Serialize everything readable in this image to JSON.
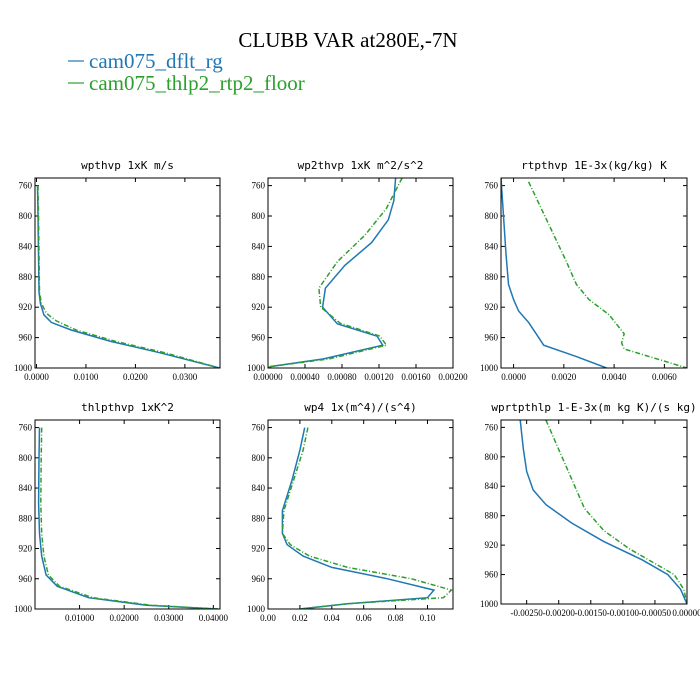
{
  "figure": {
    "title": "CLUBB VAR at280E,-7N",
    "legend": [
      {
        "label": "cam075_dflt_rg",
        "color": "#1f77b4"
      },
      {
        "label": "cam075_thlp2_rtp2_floor",
        "color": "#2ca02c"
      }
    ]
  },
  "chart_data": [
    {
      "type": "line",
      "title": "wpthvp  1xK m/s",
      "xlim": [
        -0.0003,
        0.0371
      ],
      "ylim": [
        1000,
        750
      ],
      "yticks": [
        760,
        800,
        840,
        880,
        920,
        960,
        1000
      ],
      "xticks": [
        0,
        0.01,
        0.02,
        0.03
      ],
      "xtick_labels": [
        "0.0000",
        "0.0100",
        "0.0200",
        "0.0300"
      ],
      "series": [
        {
          "name": "cam075_dflt_rg",
          "color": "#1f77b4",
          "x": [
            0.0002,
            0.0003,
            0.0004,
            0.0005,
            0.0008,
            0.0015,
            0.003,
            0.007,
            0.015,
            0.025,
            0.037
          ],
          "y": [
            760,
            800,
            850,
            900,
            915,
            930,
            940,
            950,
            965,
            980,
            1000
          ]
        },
        {
          "name": "cam075_thlp2_rtp2_floor",
          "color": "#2ca02c",
          "x": [
            0.0003,
            0.0004,
            0.0005,
            0.0006,
            0.001,
            0.002,
            0.004,
            0.008,
            0.016,
            0.026,
            0.037
          ],
          "y": [
            760,
            800,
            850,
            900,
            915,
            928,
            938,
            950,
            965,
            980,
            1000
          ]
        }
      ]
    },
    {
      "type": "line",
      "title": "wp2thvp  1xK m^2/s^2",
      "xlim": [
        0,
        0.002
      ],
      "ylim": [
        1000,
        750
      ],
      "yticks": [
        760,
        800,
        840,
        880,
        920,
        960,
        1000
      ],
      "xticks": [
        0,
        0.0004,
        0.0008,
        0.0012,
        0.0016,
        0.002
      ],
      "xtick_labels": [
        "0.00000",
        "0.00040",
        "0.00080",
        "0.00120",
        "0.00160",
        "0.00200"
      ],
      "series": [
        {
          "name": "cam075_dflt_rg",
          "color": "#1f77b4",
          "x": [
            0.00138,
            0.00136,
            0.0013,
            0.00112,
            0.00083,
            0.00062,
            0.00059,
            0.00075,
            0.00118,
            0.00124,
            0.0006,
            3e-05,
            0.0
          ],
          "y": [
            750,
            780,
            805,
            835,
            865,
            895,
            920,
            942,
            958,
            970,
            988,
            998,
            1000
          ]
        },
        {
          "name": "cam075_thlp2_rtp2_floor",
          "color": "#2ca02c",
          "x": [
            0.00145,
            0.00128,
            0.00105,
            0.00075,
            0.00055,
            0.00057,
            0.00078,
            0.00121,
            0.00128,
            0.00066,
            3e-05,
            0.0
          ],
          "y": [
            750,
            790,
            825,
            860,
            895,
            920,
            941,
            958,
            970,
            988,
            998,
            1000
          ]
        }
      ]
    },
    {
      "type": "line",
      "title": "rtpthvp  1E-3x(kg/kg) K",
      "xlim": [
        -0.0005,
        0.0069
      ],
      "ylim": [
        1000,
        750
      ],
      "yticks": [
        760,
        800,
        840,
        880,
        920,
        960,
        1000
      ],
      "xticks": [
        0,
        0.002,
        0.004,
        0.006
      ],
      "xtick_labels": [
        "0.0000",
        "0.0020",
        "0.0040",
        "0.0060"
      ],
      "series": [
        {
          "name": "cam075_dflt_rg",
          "color": "#1f77b4",
          "x": [
            -0.0005,
            -0.0004,
            -0.0003,
            -0.0002,
            0.0,
            0.0002,
            0.0006,
            0.0009,
            0.0012,
            0.0025,
            0.0037
          ],
          "y": [
            750,
            800,
            850,
            890,
            910,
            925,
            940,
            955,
            970,
            985,
            1000
          ]
        },
        {
          "name": "cam075_thlp2_rtp2_floor",
          "color": "#2ca02c",
          "x": [
            0.0006,
            0.0011,
            0.0016,
            0.0021,
            0.0025,
            0.003,
            0.0038,
            0.0044,
            0.0043,
            0.0044,
            0.0069
          ],
          "y": [
            755,
            790,
            825,
            860,
            890,
            910,
            930,
            955,
            967,
            975,
            1000
          ]
        }
      ]
    },
    {
      "type": "line",
      "title": "thlpthvp  1xK^2",
      "xlim": [
        0,
        0.0415
      ],
      "ylim": [
        1000,
        750
      ],
      "yticks": [
        760,
        800,
        840,
        880,
        920,
        960,
        1000
      ],
      "xticks": [
        0.01,
        0.02,
        0.03,
        0.04
      ],
      "xtick_labels": [
        "0.01000",
        "0.02000",
        "0.03000",
        "0.04000"
      ],
      "series": [
        {
          "name": "cam075_dflt_rg",
          "color": "#1f77b4",
          "x": [
            0.001,
            0.0009,
            0.0008,
            0.001,
            0.0015,
            0.0025,
            0.005,
            0.012,
            0.025,
            0.041
          ],
          "y": [
            760,
            800,
            860,
            900,
            930,
            955,
            970,
            985,
            995,
            1000
          ]
        },
        {
          "name": "cam075_thlp2_rtp2_floor",
          "color": "#2ca02c",
          "x": [
            0.0015,
            0.0014,
            0.0013,
            0.0015,
            0.002,
            0.003,
            0.0055,
            0.013,
            0.026,
            0.041
          ],
          "y": [
            760,
            800,
            860,
            900,
            930,
            955,
            970,
            985,
            995,
            1000
          ]
        }
      ]
    },
    {
      "type": "line",
      "title": "wp4  1x(m^4)/(s^4)",
      "xlim": [
        0,
        0.116
      ],
      "ylim": [
        1000,
        750
      ],
      "yticks": [
        760,
        800,
        840,
        880,
        920,
        960,
        1000
      ],
      "xticks": [
        0,
        0.02,
        0.04,
        0.06,
        0.08,
        0.1
      ],
      "xtick_labels": [
        "0.00",
        "0.02",
        "0.04",
        "0.06",
        "0.08",
        "0.10"
      ],
      "series": [
        {
          "name": "cam075_dflt_rg",
          "color": "#1f77b4",
          "x": [
            0.023,
            0.02,
            0.015,
            0.009,
            0.009,
            0.012,
            0.022,
            0.04,
            0.075,
            0.104,
            0.1,
            0.05,
            0.02
          ],
          "y": [
            760,
            790,
            830,
            870,
            900,
            915,
            930,
            945,
            960,
            975,
            985,
            993,
            1000
          ]
        },
        {
          "name": "cam075_thlp2_rtp2_floor",
          "color": "#2ca02c",
          "x": [
            0.025,
            0.022,
            0.016,
            0.01,
            0.009,
            0.014,
            0.026,
            0.05,
            0.09,
            0.115,
            0.11,
            0.05,
            0.02
          ],
          "y": [
            760,
            790,
            830,
            870,
            900,
            915,
            930,
            945,
            960,
            975,
            985,
            993,
            1000
          ]
        }
      ]
    },
    {
      "type": "line",
      "title": "wprtpthlp  1-E-3x(m kg K)/(s kg)",
      "xlim": [
        -0.0029,
        0.0
      ],
      "ylim": [
        1000,
        750
      ],
      "yticks": [
        760,
        800,
        840,
        880,
        920,
        960,
        1000
      ],
      "xticks": [
        -0.0025,
        -0.002,
        -0.0015,
        -0.001,
        -0.0005,
        0.0
      ],
      "xtick_labels": [
        "-0.00250",
        "-0.00200",
        "-0.00150",
        "-0.00100",
        "-0.00050",
        "0.00000"
      ],
      "series": [
        {
          "name": "cam075_dflt_rg",
          "color": "#1f77b4",
          "x": [
            -0.0026,
            -0.00255,
            -0.0025,
            -0.0024,
            -0.0022,
            -0.0018,
            -0.0013,
            -0.0007,
            -0.0003,
            -0.0001,
            0.0
          ],
          "y": [
            750,
            790,
            820,
            845,
            865,
            890,
            915,
            940,
            960,
            980,
            1000
          ]
        },
        {
          "name": "cam075_thlp2_rtp2_floor",
          "color": "#2ca02c",
          "x": [
            -0.0022,
            -0.002,
            -0.0018,
            -0.0016,
            -0.0013,
            -0.0009,
            -0.0005,
            -0.0002,
            -5e-05,
            0.0
          ],
          "y": [
            750,
            790,
            830,
            870,
            900,
            925,
            945,
            960,
            980,
            1000
          ]
        }
      ]
    }
  ]
}
